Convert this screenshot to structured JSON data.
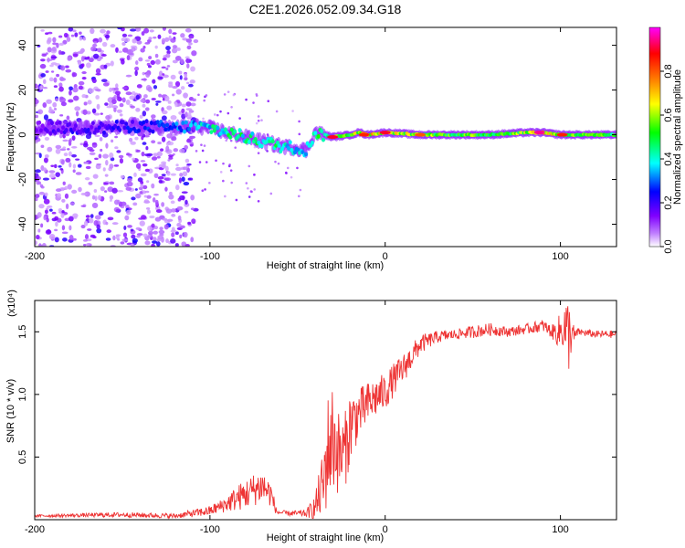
{
  "title": "C2E1.2026.052.09.34.G18",
  "chart_data": [
    {
      "type": "heatmap",
      "title": "C2E1.2026.052.09.34.G18",
      "xlabel": "Height of straight line (km)",
      "ylabel": "Frequency (Hz)",
      "xlim": [
        -200,
        132
      ],
      "ylim": [
        -50,
        48
      ],
      "xticks": [
        -200,
        -100,
        0,
        100
      ],
      "yticks": [
        -40,
        -20,
        0,
        20,
        40
      ],
      "colorbar": {
        "label": "Normalized spectral amplitude",
        "range": [
          0,
          1
        ],
        "ticks": [
          "0.0",
          "0.2",
          "0.4",
          "0.6",
          "0.8"
        ],
        "tick_values": [
          0.0,
          0.2,
          0.4,
          0.6,
          0.8
        ],
        "colors": [
          "#ffffff",
          "#8000ff",
          "#0000ff",
          "#00ffff",
          "#00ff00",
          "#ffff00",
          "#ff8000",
          "#ff0000",
          "#ff00ff"
        ]
      },
      "ridge_x": [
        -200,
        -180,
        -160,
        -140,
        -120,
        -110,
        -100,
        -90,
        -80,
        -70,
        -60,
        -50,
        -45,
        -40,
        -35,
        -30,
        -20,
        -15,
        -10,
        0,
        20,
        40,
        60,
        80,
        90,
        100,
        110,
        132
      ],
      "ridge_freq": [
        3,
        3,
        3,
        4,
        3,
        4,
        3,
        1,
        -1,
        -3,
        -5,
        -6,
        -7,
        1,
        0,
        -1,
        0,
        1,
        0,
        1,
        0,
        0,
        0,
        1,
        1,
        0,
        0,
        0
      ],
      "ridge_amplitude": [
        0.15,
        0.2,
        0.2,
        0.25,
        0.3,
        0.35,
        0.4,
        0.45,
        0.45,
        0.45,
        0.45,
        0.4,
        0.4,
        0.45,
        0.5,
        0.55,
        0.6,
        0.65,
        0.7,
        0.65,
        0.6,
        0.55,
        0.55,
        0.6,
        0.75,
        0.6,
        0.55,
        0.5
      ],
      "ridge_peaks": [
        {
          "x": -30,
          "freq": -1,
          "amp": 0.9
        },
        {
          "x": -12,
          "freq": 0,
          "amp": 0.85
        },
        {
          "x": 0,
          "freq": 1,
          "amp": 0.9
        },
        {
          "x": 20,
          "freq": 0,
          "amp": 0.8
        },
        {
          "x": 88,
          "freq": 1,
          "amp": 0.95
        },
        {
          "x": 101,
          "freq": 0,
          "amp": 0.85
        }
      ]
    },
    {
      "type": "line",
      "xlabel": "Height of straight line (km)",
      "ylabel": "SNR (10 * v/v)",
      "multiplier": "(x10⁴)",
      "xlim": [
        -200,
        132
      ],
      "ylim": [
        0,
        1.75
      ],
      "xticks": [
        -200,
        -100,
        0,
        100
      ],
      "yticks": [
        "0.5",
        "1.0",
        "1.5"
      ],
      "ytick_values": [
        0.5,
        1.0,
        1.5
      ],
      "series": [
        {
          "name": "SNR",
          "color": "#ee3333",
          "x": [
            -200,
            -150,
            -120,
            -110,
            -100,
            -95,
            -90,
            -85,
            -80,
            -75,
            -70,
            -65,
            -62,
            -55,
            -45,
            -40,
            -35,
            -33,
            -30,
            -27,
            -25,
            -22,
            -20,
            -15,
            -10,
            -5,
            0,
            5,
            10,
            15,
            20,
            25,
            30,
            40,
            50,
            60,
            70,
            80,
            90,
            95,
            100,
            102,
            104,
            106,
            108,
            110,
            120,
            132
          ],
          "y": [
            0.03,
            0.04,
            0.03,
            0.05,
            0.07,
            0.1,
            0.13,
            0.17,
            0.2,
            0.24,
            0.27,
            0.2,
            0.06,
            0.05,
            0.05,
            0.1,
            0.3,
            0.55,
            0.65,
            0.55,
            0.5,
            0.6,
            0.75,
            0.85,
            0.92,
            0.98,
            1.02,
            1.12,
            1.2,
            1.3,
            1.4,
            1.43,
            1.46,
            1.48,
            1.5,
            1.52,
            1.5,
            1.52,
            1.55,
            1.5,
            1.5,
            1.55,
            1.45,
            1.5,
            1.46,
            1.5,
            1.48,
            1.48
          ],
          "noise": [
            0.01,
            0.02,
            0.02,
            0.03,
            0.04,
            0.05,
            0.07,
            0.1,
            0.12,
            0.13,
            0.14,
            0.1,
            0.02,
            0.02,
            0.03,
            0.1,
            0.3,
            0.45,
            0.45,
            0.35,
            0.3,
            0.3,
            0.3,
            0.2,
            0.18,
            0.16,
            0.15,
            0.13,
            0.12,
            0.1,
            0.08,
            0.06,
            0.05,
            0.04,
            0.05,
            0.05,
            0.04,
            0.04,
            0.05,
            0.05,
            0.15,
            0.2,
            0.35,
            0.2,
            0.06,
            0.03,
            0.03,
            0.03
          ]
        }
      ]
    }
  ]
}
